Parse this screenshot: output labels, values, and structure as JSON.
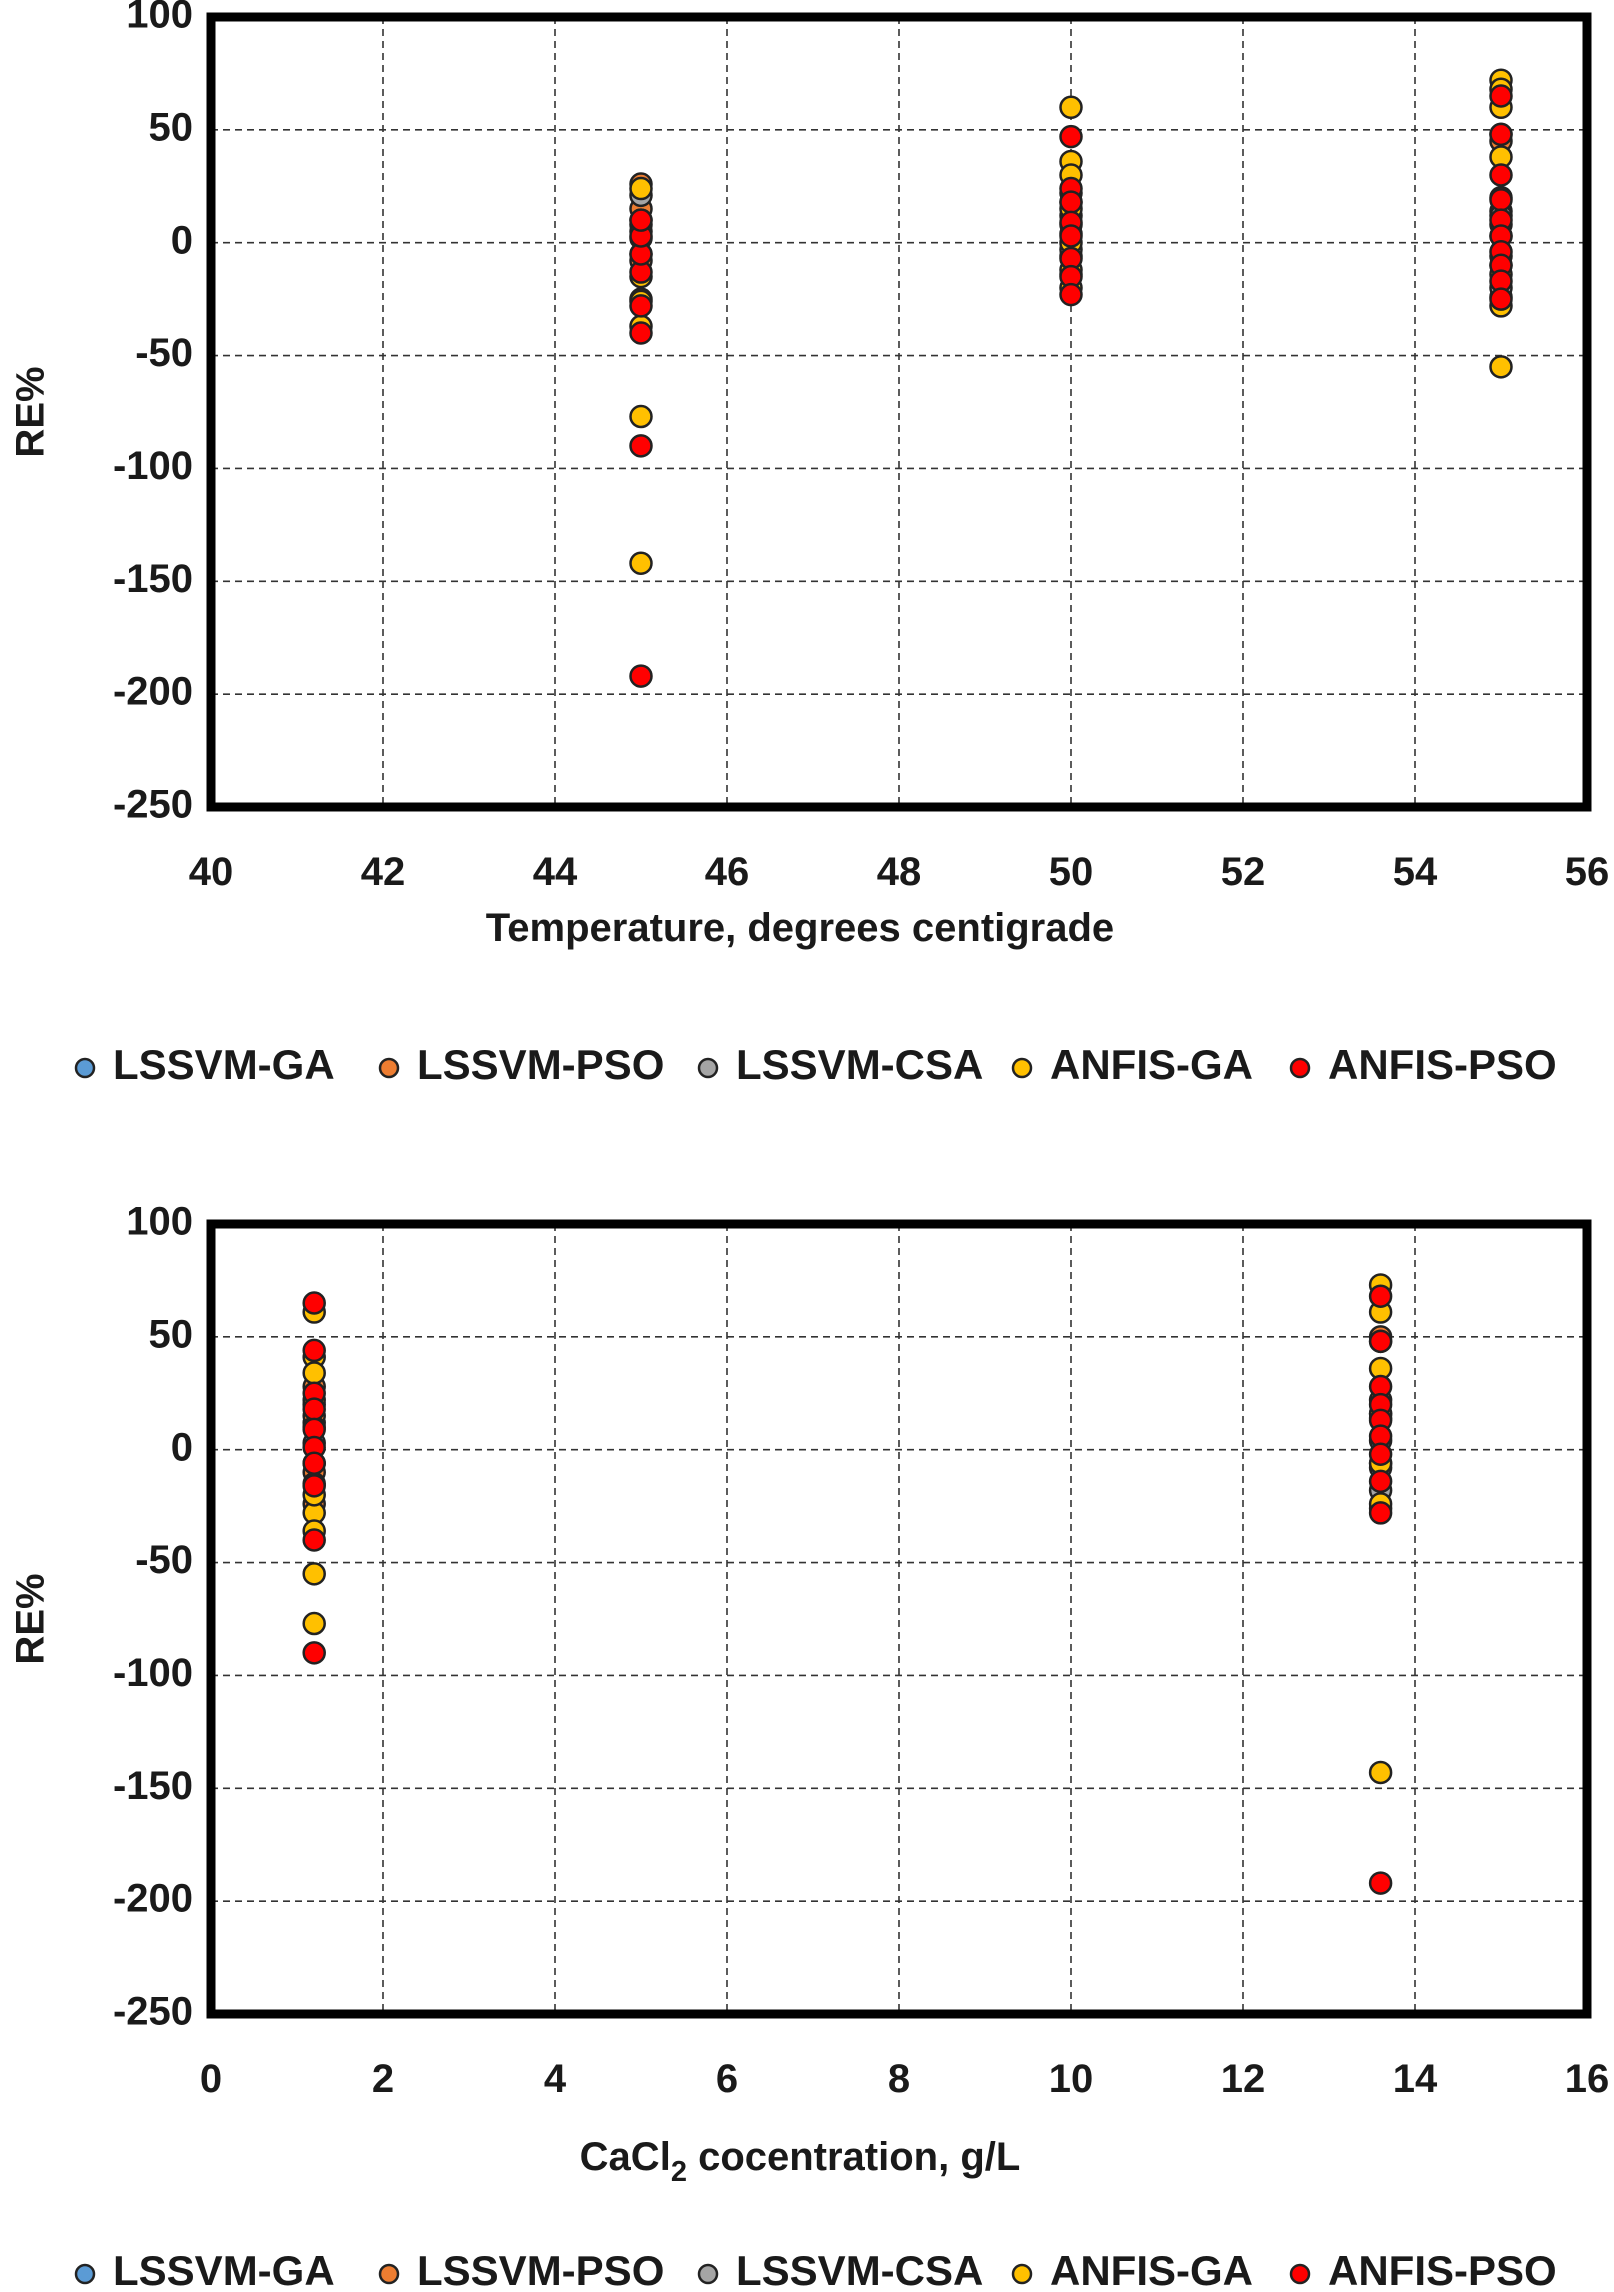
{
  "legend": [
    {
      "name": "LSSVM-GA",
      "color": "#5B9BD5"
    },
    {
      "name": "LSSVM-PSO",
      "color": "#ED7D31"
    },
    {
      "name": "LSSVM-CSA",
      "color": "#A5A5A5"
    },
    {
      "name": "ANFIS-GA",
      "color": "#FFC000"
    },
    {
      "name": "ANFIS-PSO",
      "color": "#FF0000"
    }
  ],
  "chart_data": [
    {
      "type": "scatter",
      "title": "",
      "xlabel": "Temperature, degrees centigrade",
      "ylabel": "RE%",
      "xlim": [
        40,
        56
      ],
      "ylim": [
        -250,
        100
      ],
      "xticks": [
        40,
        42,
        44,
        46,
        48,
        50,
        52,
        54,
        56
      ],
      "yticks": [
        100,
        50,
        0,
        -50,
        -100,
        -150,
        -200,
        -250
      ],
      "grid": true,
      "legend_position": "bottom",
      "series": [
        {
          "name": "LSSVM-GA",
          "color": "#5B9BD5",
          "x": [
            45,
            45,
            45,
            50,
            50,
            50,
            55,
            55,
            55
          ],
          "y": [
            -5,
            2,
            8,
            -6,
            4,
            12,
            -10,
            3,
            14
          ]
        },
        {
          "name": "LSSVM-PSO",
          "color": "#ED7D31",
          "x": [
            45,
            45,
            45,
            45,
            50,
            50,
            50,
            55,
            55,
            55,
            55
          ],
          "y": [
            26,
            15,
            -8,
            -25,
            22,
            8,
            -14,
            45,
            20,
            -6,
            -24
          ]
        },
        {
          "name": "LSSVM-CSA",
          "color": "#A5A5A5",
          "x": [
            45,
            45,
            50,
            50,
            55,
            55
          ],
          "y": [
            21,
            5,
            18,
            -3,
            12,
            -20
          ]
        },
        {
          "name": "ANFIS-GA",
          "color": "#FFC000",
          "x": [
            45,
            45,
            45,
            45,
            45,
            45,
            45,
            50,
            50,
            50,
            50,
            50,
            50,
            50,
            55,
            55,
            55,
            55,
            55,
            55,
            55,
            55,
            55
          ],
          "y": [
            -142,
            -77,
            -37,
            -26,
            -15,
            10,
            24,
            60,
            36,
            30,
            15,
            0,
            -12,
            -20,
            72,
            68,
            60,
            48,
            38,
            8,
            -14,
            -28,
            -55
          ]
        },
        {
          "name": "ANFIS-PSO",
          "color": "#FF0000",
          "x": [
            45,
            45,
            45,
            45,
            45,
            45,
            45,
            45,
            50,
            50,
            50,
            50,
            50,
            50,
            50,
            50,
            55,
            55,
            55,
            55,
            55,
            55,
            55,
            55,
            55,
            55
          ],
          "y": [
            -192,
            -90,
            -40,
            -28,
            -13,
            -5,
            3,
            10,
            47,
            24,
            18,
            9,
            3,
            -7,
            -15,
            -23,
            65,
            48,
            30,
            19,
            10,
            3,
            -4,
            -10,
            -17,
            -25
          ]
        }
      ]
    },
    {
      "type": "scatter",
      "title": "",
      "xlabel_prefix": "CaCl",
      "xlabel_sub": "2",
      "xlabel_suffix": " cocentration, g/L",
      "ylabel": "RE%",
      "xlim": [
        0,
        16
      ],
      "ylim": [
        -250,
        100
      ],
      "xticks": [
        0,
        2,
        4,
        6,
        8,
        10,
        12,
        14,
        16
      ],
      "yticks": [
        100,
        50,
        0,
        -50,
        -100,
        -150,
        -200,
        -250
      ],
      "grid": true,
      "legend_position": "bottom",
      "series": [
        {
          "name": "LSSVM-GA",
          "color": "#5B9BD5",
          "x": [
            1.2,
            1.2,
            1.2,
            13.6,
            13.6,
            13.6
          ],
          "y": [
            -6,
            3,
            12,
            -8,
            4,
            14
          ]
        },
        {
          "name": "LSSVM-PSO",
          "color": "#ED7D31",
          "x": [
            1.2,
            1.2,
            1.2,
            1.2,
            13.6,
            13.6,
            13.6,
            13.6
          ],
          "y": [
            28,
            15,
            -10,
            -24,
            50,
            22,
            -6,
            -26
          ]
        },
        {
          "name": "LSSVM-CSA",
          "color": "#A5A5A5",
          "x": [
            1.2,
            1.2,
            13.6,
            13.6
          ],
          "y": [
            20,
            -15,
            16,
            -18
          ]
        },
        {
          "name": "ANFIS-GA",
          "color": "#FFC000",
          "x": [
            1.2,
            1.2,
            1.2,
            1.2,
            1.2,
            1.2,
            1.2,
            1.2,
            1.2,
            1.2,
            13.6,
            13.6,
            13.6,
            13.6,
            13.6,
            13.6,
            13.6,
            13.6
          ],
          "y": [
            61,
            41,
            34,
            22,
            10,
            -28,
            -36,
            -55,
            -77,
            -20,
            73,
            61,
            48,
            36,
            16,
            -6,
            -24,
            -143
          ]
        },
        {
          "name": "ANFIS-PSO",
          "color": "#FF0000",
          "x": [
            1.2,
            1.2,
            1.2,
            1.2,
            1.2,
            1.2,
            1.2,
            1.2,
            1.2,
            1.2,
            13.6,
            13.6,
            13.6,
            13.6,
            13.6,
            13.6,
            13.6,
            13.6,
            13.6,
            13.6
          ],
          "y": [
            65,
            44,
            25,
            18,
            9,
            1,
            -6,
            -16,
            -40,
            -90,
            68,
            48,
            28,
            20,
            13,
            6,
            -2,
            -14,
            -28,
            -192
          ]
        }
      ]
    }
  ]
}
